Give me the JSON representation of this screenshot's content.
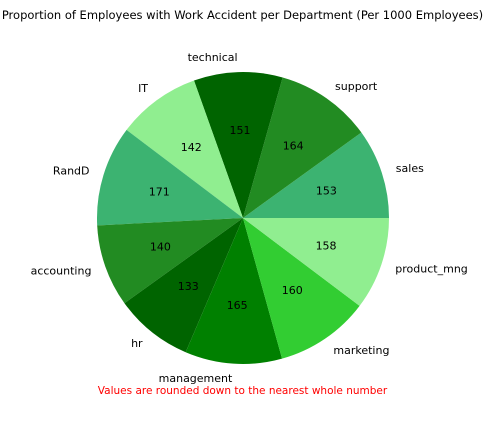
{
  "chart_data": {
    "type": "pie",
    "title": "Proportion of Employees with Work Accident per Department (Per 1000 Employees)",
    "categories": [
      "sales",
      "support",
      "technical",
      "IT",
      "RandD",
      "accounting",
      "hr",
      "management",
      "marketing",
      "product_mng"
    ],
    "values": [
      153,
      164,
      151,
      142,
      171,
      140,
      133,
      165,
      160,
      158
    ],
    "colors": [
      "#3cb371",
      "#228b22",
      "#006400",
      "#90ee90",
      "#3cb371",
      "#228b22",
      "#006400",
      "#008000",
      "#32cd32",
      "#90ee90"
    ],
    "start_angle_deg": 0,
    "direction": "counterclockwise",
    "note": "Values are rounded down to the nearest whole number",
    "note_color": "#ff0000"
  }
}
